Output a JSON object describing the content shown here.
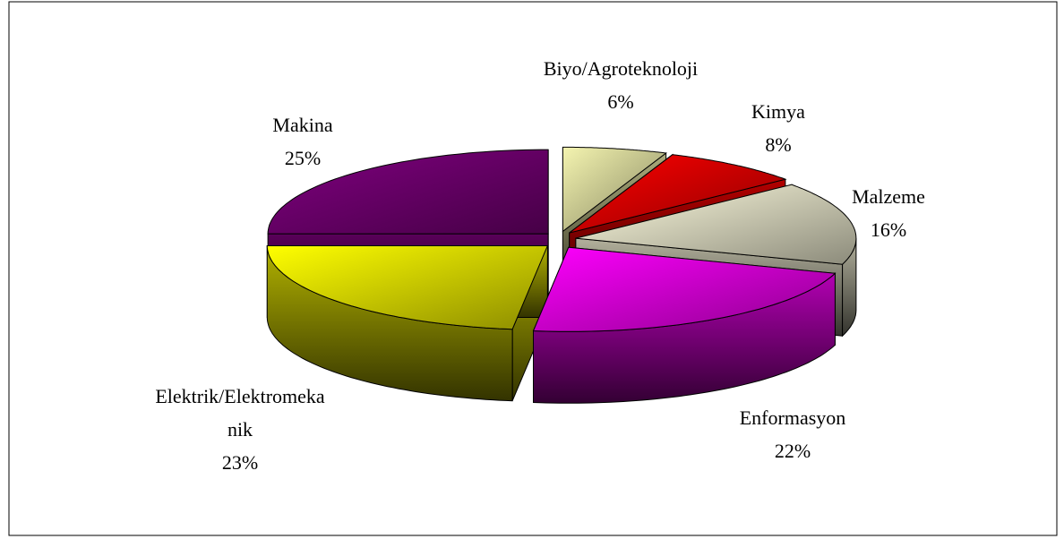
{
  "chart_data": {
    "type": "pie3d",
    "categories": [
      "Biyo/Agroteknoloji",
      "Kimya",
      "Malzeme",
      "Enformasyon",
      "Elektrik/Elektromekanik",
      "Makina"
    ],
    "values": [
      6,
      8,
      16,
      22,
      23,
      25
    ],
    "value_labels": [
      "6%",
      "8%",
      "16%",
      "22%",
      "23%",
      "25%"
    ],
    "colors": [
      "#f4f4b0",
      "#ff0000",
      "#fffde0",
      "#ff00ff",
      "#ffff00",
      "#800080"
    ]
  }
}
